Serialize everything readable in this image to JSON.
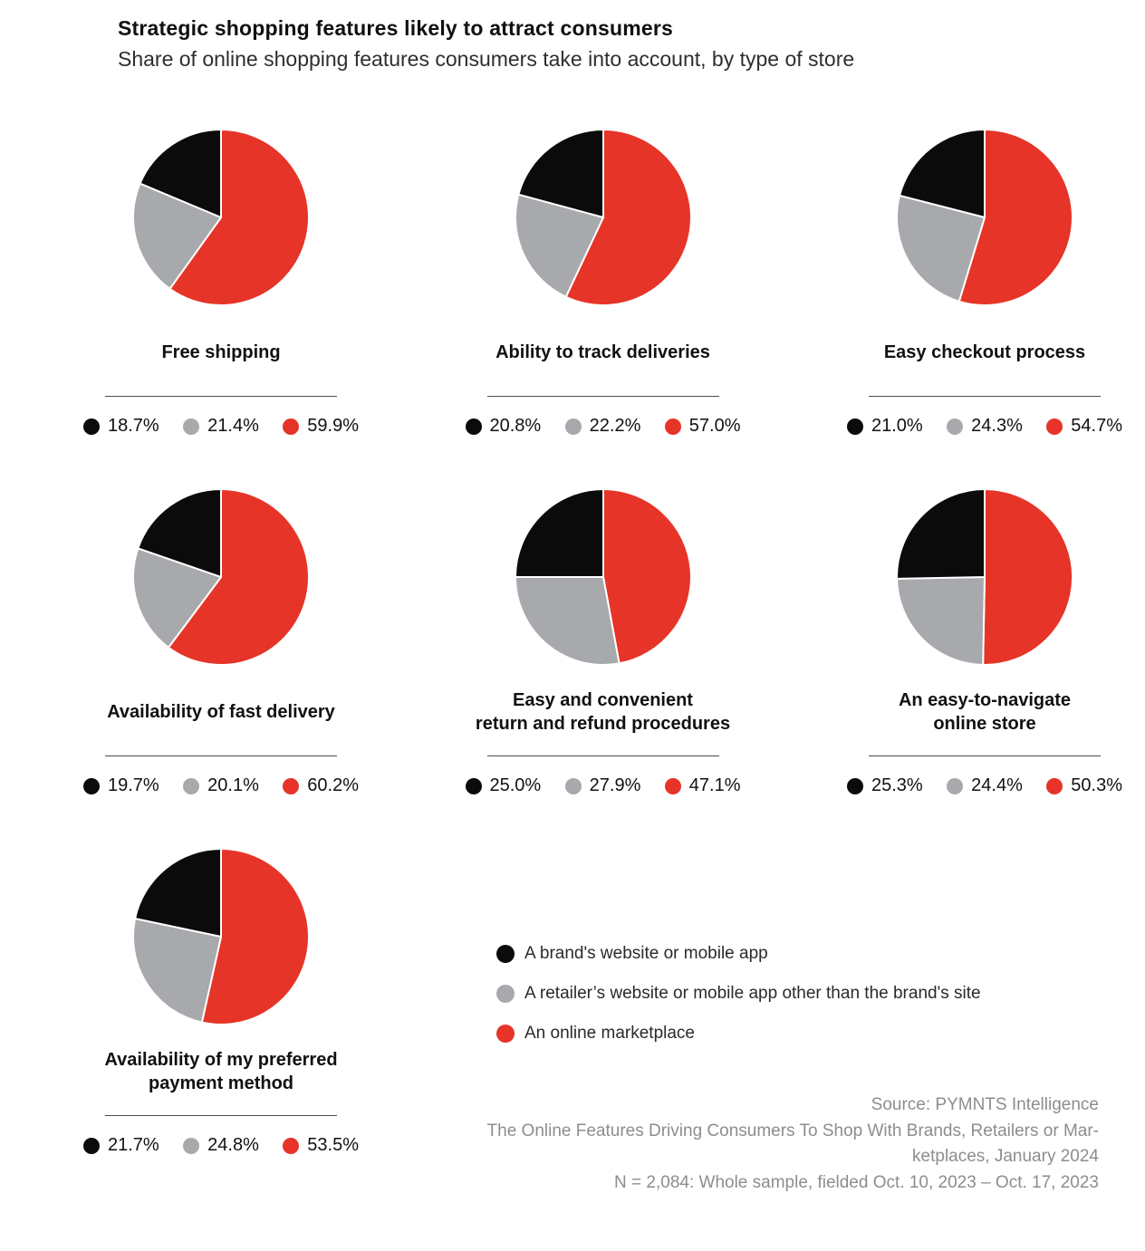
{
  "header": {
    "title": "Strategic shopping features likely to attract consumers",
    "subtitle": "Share of online shopping features consumers take into account, by type of store"
  },
  "legend": {
    "items": [
      {
        "label": "A brand's website or mobile app",
        "color": "#0B0B0B"
      },
      {
        "label": "A retailer’s website or mobile app other than the brand's site",
        "color": "#A7A9AC"
      },
      {
        "label": "An online marketplace",
        "color": "#E63428"
      }
    ]
  },
  "chart_data": {
    "type": "pie",
    "unit": "%",
    "series_labels": [
      "A brand's website or mobile app",
      "A retailer’s website or mobile app other than the brand's site",
      "An online marketplace"
    ],
    "series_colors": [
      "#0B0B0B",
      "#A7A9AC",
      "#E63428"
    ],
    "slice_draw_order_clockwise_from_top": [
      "An online marketplace",
      "A retailer’s website or mobile app other than the brand's site",
      "A brand's website or mobile app"
    ],
    "legend_position": "bottom-center",
    "charts": [
      {
        "title": "Free shipping",
        "values": [
          18.7,
          21.4,
          59.9
        ],
        "labels": [
          "18.7%",
          "21.4%",
          "59.9%"
        ]
      },
      {
        "title": "Ability to track deliveries",
        "values": [
          20.8,
          22.2,
          57.0
        ],
        "labels": [
          "20.8%",
          "22.2%",
          "57.0%"
        ]
      },
      {
        "title": "Easy checkout process",
        "values": [
          21.0,
          24.3,
          54.7
        ],
        "labels": [
          "21.0%",
          "24.3%",
          "54.7%"
        ]
      },
      {
        "title": "Availability of fast delivery",
        "values": [
          19.7,
          20.1,
          60.2
        ],
        "labels": [
          "19.7%",
          "20.1%",
          "60.2%"
        ]
      },
      {
        "title": "Easy and convenient\nreturn and refund procedures",
        "values": [
          25.0,
          27.9,
          47.1
        ],
        "labels": [
          "25.0%",
          "27.9%",
          "47.1%"
        ]
      },
      {
        "title": "An easy-to-navigate\nonline store",
        "values": [
          25.3,
          24.4,
          50.3
        ],
        "labels": [
          "25.3%",
          "24.4%",
          "50.3%"
        ]
      },
      {
        "title": "Availability of my preferred\npayment method",
        "values": [
          21.7,
          24.8,
          53.5
        ],
        "labels": [
          "21.7%",
          "24.8%",
          "53.5%"
        ]
      }
    ]
  },
  "footer": {
    "lines": [
      "Source: PYMNTS Intelligence",
      "The Online Features Driving Consumers To Shop With Brands, Retailers or Mar-",
      "ketplaces, January 2024",
      "N = 2,084: Whole sample, fielded Oct. 10, 2023 – Oct. 17, 2023"
    ]
  }
}
